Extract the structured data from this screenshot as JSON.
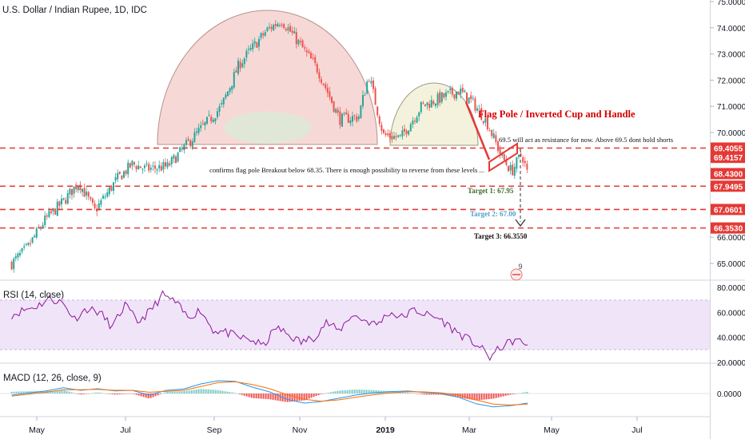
{
  "header": {
    "symbol_title": "U.S. Dollar / Indian Rupee, 1D, IDC"
  },
  "colors": {
    "up": "#26a69a",
    "down": "#ef5350",
    "rsi": "#8e1599",
    "rsi_band": "#e9d8f7",
    "macd_line": "#2196f3",
    "signal_line": "#ff6d00",
    "level_line": "#e53935",
    "cup_fill": "#f3ccc8",
    "cup_fill_2": "#f2f0d6"
  },
  "annotations": {
    "pattern_title": "Flag Pole / Inverted Cup and Handle",
    "resistance_note": "69.5 will act as resistance for now. Above 69.5 dont hold  shorts",
    "breakout_note": "confirms flag pole Breakout below 68.35. There is enough possibility to reverse from these levels ...",
    "target1": "Target 1: 67.95",
    "target2": "Target 2: 67.00",
    "target3": "Target 3: 66.3550",
    "event_badge": "9"
  },
  "price_axis": {
    "ticks": [
      "75.0000",
      "74.0000",
      "73.0000",
      "72.0000",
      "71.0000",
      "70.0000",
      "69.0000",
      "68.0000",
      "67.0000",
      "66.0000",
      "65.0000"
    ],
    "level_labels": [
      {
        "text": "69.4055",
        "value": 69.4055
      },
      {
        "text": "69.4157",
        "value": 69.05
      },
      {
        "text": "68.4300",
        "value": 68.43
      },
      {
        "text": "67.9495",
        "value": 67.9495
      },
      {
        "text": "67.0601",
        "value": 67.0601
      },
      {
        "text": "66.3530",
        "value": 66.353
      }
    ]
  },
  "rsi_panel": {
    "label": "RSI (14, close)",
    "ticks": [
      "80.0000",
      "60.0000",
      "40.0000",
      "20.0000"
    ]
  },
  "macd_panel": {
    "label": "MACD (12, 26, close, 9)",
    "ticks": [
      "0.0000"
    ]
  },
  "time_axis": {
    "labels": [
      "May",
      "Jul",
      "Sep",
      "Nov",
      "2019",
      "Mar",
      "May",
      "Jul"
    ]
  },
  "chart_data": {
    "type": "candlestick",
    "title": "U.S. Dollar / Indian Rupee, 1D, IDC",
    "period": "2018-04 to 2019-03",
    "price_range": [
      64.5,
      75.1
    ],
    "horizontal_levels": [
      69.4055,
      67.9495,
      67.0601,
      66.353
    ],
    "close_path": [
      {
        "x": "2018-04-09",
        "y": 65.0
      },
      {
        "x": "2018-04-20",
        "y": 65.6
      },
      {
        "x": "2018-05-01",
        "y": 66.6
      },
      {
        "x": "2018-05-15",
        "y": 67.4
      },
      {
        "x": "2018-05-25",
        "y": 68.1
      },
      {
        "x": "2018-06-05",
        "y": 67.0
      },
      {
        "x": "2018-06-20",
        "y": 68.2
      },
      {
        "x": "2018-07-01",
        "y": 68.8
      },
      {
        "x": "2018-07-10",
        "y": 68.6
      },
      {
        "x": "2018-07-25",
        "y": 68.7
      },
      {
        "x": "2018-08-13",
        "y": 69.9
      },
      {
        "x": "2018-08-31",
        "y": 71.0
      },
      {
        "x": "2018-09-12",
        "y": 72.6
      },
      {
        "x": "2018-10-01",
        "y": 73.9
      },
      {
        "x": "2018-10-11",
        "y": 74.3
      },
      {
        "x": "2018-10-22",
        "y": 73.5
      },
      {
        "x": "2018-11-05",
        "y": 72.4
      },
      {
        "x": "2018-11-20",
        "y": 70.5
      },
      {
        "x": "2018-12-03",
        "y": 70.6
      },
      {
        "x": "2018-12-10",
        "y": 72.2
      },
      {
        "x": "2018-12-20",
        "y": 69.9
      },
      {
        "x": "2019-01-01",
        "y": 69.8
      },
      {
        "x": "2019-01-15",
        "y": 71.0
      },
      {
        "x": "2019-02-01",
        "y": 71.4
      },
      {
        "x": "2019-02-10",
        "y": 71.6
      },
      {
        "x": "2019-02-20",
        "y": 71.1
      },
      {
        "x": "2019-03-01",
        "y": 70.4
      },
      {
        "x": "2019-03-11",
        "y": 69.1
      },
      {
        "x": "2019-03-18",
        "y": 68.5
      },
      {
        "x": "2019-03-25",
        "y": 69.2
      },
      {
        "x": "2019-03-29",
        "y": 68.4
      }
    ],
    "rsi": {
      "range": [
        15,
        85
      ],
      "band": [
        30,
        70
      ],
      "values": [
        58,
        62,
        65,
        71,
        68,
        55,
        63,
        60,
        48,
        66,
        52,
        61,
        74,
        68,
        56,
        62,
        46,
        44,
        40,
        38,
        33,
        48,
        42,
        36,
        40,
        52,
        45,
        58,
        54,
        50,
        60,
        56,
        62,
        58,
        55,
        47,
        40,
        34,
        24,
        33,
        38,
        34
      ]
    },
    "macd": {
      "macd_line": [
        -0.05,
        0.02,
        0.08,
        0.18,
        0.1,
        0.15,
        0.08,
        0.1,
        -0.05,
        0.1,
        0.14,
        0.3,
        0.4,
        0.38,
        0.2,
        0.05,
        -0.18,
        -0.3,
        -0.25,
        -0.15,
        -0.05,
        0.02,
        0.06,
        0.08,
        0.03,
        0.0,
        -0.12,
        -0.32,
        -0.42,
        -0.38,
        -0.3
      ],
      "signal_line": [
        -0.08,
        -0.02,
        0.04,
        0.12,
        0.12,
        0.13,
        0.1,
        0.1,
        0.04,
        0.07,
        0.1,
        0.22,
        0.34,
        0.37,
        0.28,
        0.15,
        -0.03,
        -0.18,
        -0.24,
        -0.2,
        -0.12,
        -0.04,
        0.02,
        0.06,
        0.05,
        0.02,
        -0.05,
        -0.2,
        -0.33,
        -0.36,
        -0.33
      ],
      "range": [
        -0.6,
        0.6
      ]
    }
  }
}
